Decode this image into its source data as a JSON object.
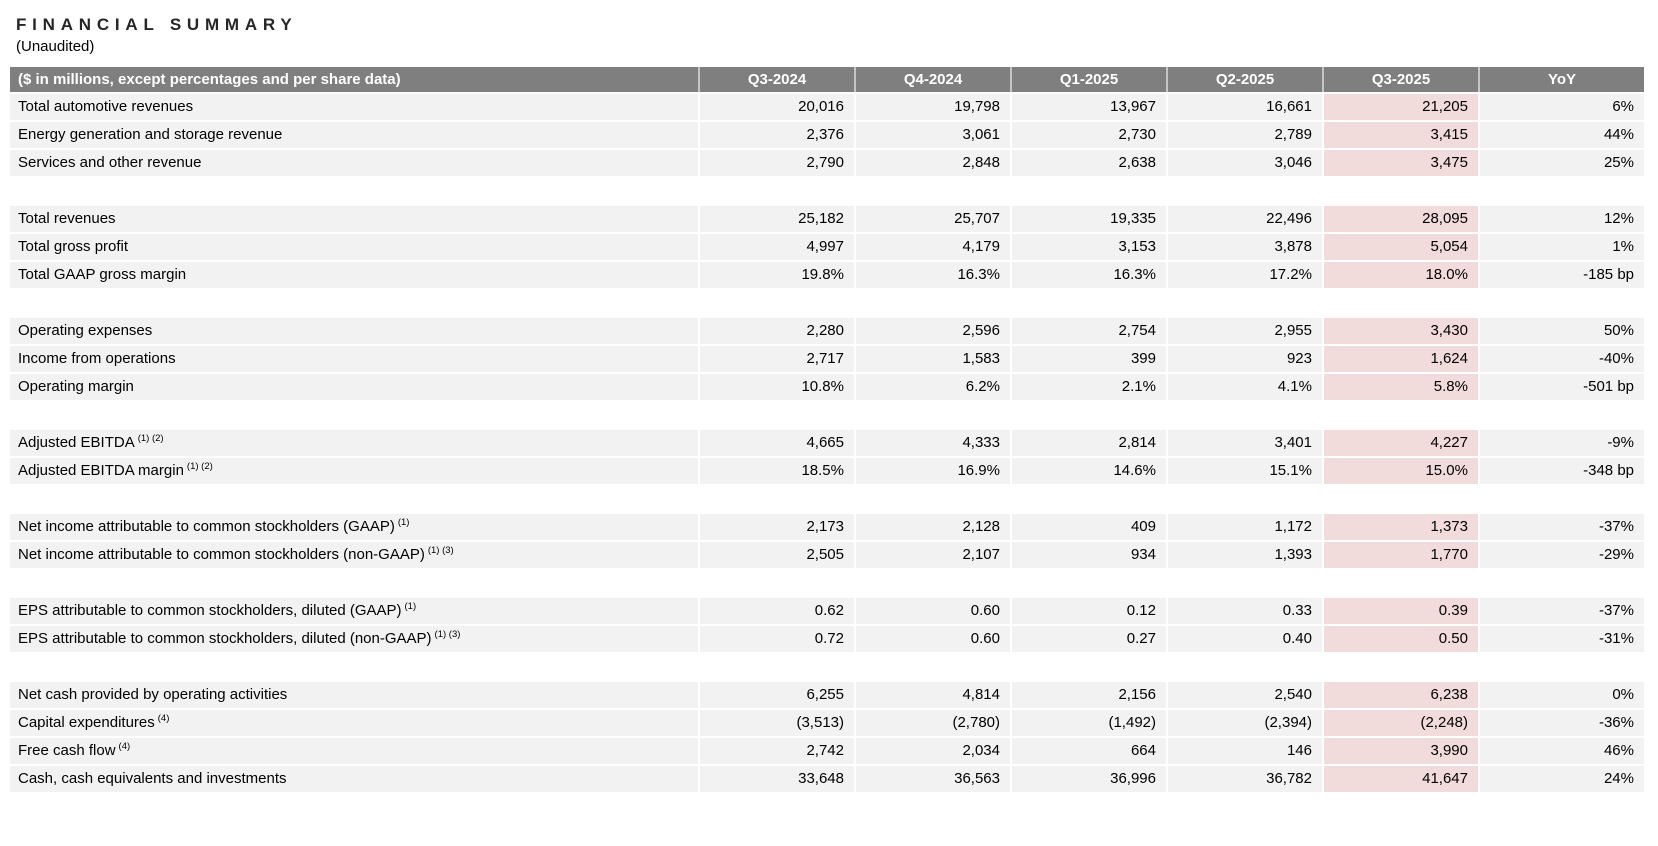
{
  "title": "FINANCIAL SUMMARY",
  "subtitle": "(Unaudited)",
  "table": {
    "header": {
      "label": "($ in millions, except percentages and per share data)",
      "columns": [
        "Q3-2024",
        "Q4-2024",
        "Q1-2025",
        "Q2-2025",
        "Q3-2025",
        "YoY"
      ]
    },
    "highlight_column": "Q3-2025",
    "colors": {
      "header_bg": "#7f7f7f",
      "header_text": "#ffffff",
      "row_bg": "#f2f2f2",
      "highlight_bg": "#f2dcdb"
    },
    "sections": [
      {
        "rows": [
          {
            "label": "Total automotive revenues",
            "sup": "",
            "values": [
              "20,016",
              "19,798",
              "13,967",
              "16,661",
              "21,205",
              "6%"
            ]
          },
          {
            "label": "Energy generation and storage revenue",
            "sup": "",
            "values": [
              "2,376",
              "3,061",
              "2,730",
              "2,789",
              "3,415",
              "44%"
            ]
          },
          {
            "label": "Services and other revenue",
            "sup": "",
            "values": [
              "2,790",
              "2,848",
              "2,638",
              "3,046",
              "3,475",
              "25%"
            ]
          }
        ]
      },
      {
        "rows": [
          {
            "label": "Total revenues",
            "sup": "",
            "values": [
              "25,182",
              "25,707",
              "19,335",
              "22,496",
              "28,095",
              "12%"
            ]
          },
          {
            "label": "Total gross profit",
            "sup": "",
            "values": [
              "4,997",
              "4,179",
              "3,153",
              "3,878",
              "5,054",
              "1%"
            ]
          },
          {
            "label": "Total GAAP gross margin",
            "sup": "",
            "values": [
              "19.8%",
              "16.3%",
              "16.3%",
              "17.2%",
              "18.0%",
              "-185 bp"
            ]
          }
        ]
      },
      {
        "rows": [
          {
            "label": "Operating expenses",
            "sup": "",
            "values": [
              "2,280",
              "2,596",
              "2,754",
              "2,955",
              "3,430",
              "50%"
            ]
          },
          {
            "label": "Income from operations",
            "sup": "",
            "values": [
              "2,717",
              "1,583",
              "399",
              "923",
              "1,624",
              "-40%"
            ]
          },
          {
            "label": "Operating margin",
            "sup": "",
            "values": [
              "10.8%",
              "6.2%",
              "2.1%",
              "4.1%",
              "5.8%",
              "-501 bp"
            ]
          }
        ]
      },
      {
        "rows": [
          {
            "label": "Adjusted EBITDA",
            "sup": "(1) (2)",
            "values": [
              "4,665",
              "4,333",
              "2,814",
              "3,401",
              "4,227",
              "-9%"
            ]
          },
          {
            "label": "Adjusted EBITDA margin",
            "sup": "(1) (2)",
            "values": [
              "18.5%",
              "16.9%",
              "14.6%",
              "15.1%",
              "15.0%",
              "-348 bp"
            ]
          }
        ]
      },
      {
        "rows": [
          {
            "label": "Net income attributable to common stockholders (GAAP)",
            "sup": "(1)",
            "values": [
              "2,173",
              "2,128",
              "409",
              "1,172",
              "1,373",
              "-37%"
            ]
          },
          {
            "label": "Net income attributable to common stockholders (non-GAAP)",
            "sup": "(1) (3)",
            "values": [
              "2,505",
              "2,107",
              "934",
              "1,393",
              "1,770",
              "-29%"
            ]
          }
        ]
      },
      {
        "rows": [
          {
            "label": "EPS attributable to common stockholders, diluted (GAAP)",
            "sup": "(1)",
            "values": [
              "0.62",
              "0.60",
              "0.12",
              "0.33",
              "0.39",
              "-37%"
            ]
          },
          {
            "label": "EPS attributable to common stockholders, diluted (non-GAAP)",
            "sup": "(1) (3)",
            "values": [
              "0.72",
              "0.60",
              "0.27",
              "0.40",
              "0.50",
              "-31%"
            ]
          }
        ]
      },
      {
        "rows": [
          {
            "label": "Net cash provided by operating activities",
            "sup": "",
            "values": [
              "6,255",
              "4,814",
              "2,156",
              "2,540",
              "6,238",
              "0%"
            ]
          },
          {
            "label": "Capital expenditures",
            "sup": "(4)",
            "values": [
              "(3,513)",
              "(2,780)",
              "(1,492)",
              "(2,394)",
              "(2,248)",
              "-36%"
            ]
          },
          {
            "label": "Free cash flow",
            "sup": "(4)",
            "values": [
              "2,742",
              "2,034",
              "664",
              "146",
              "3,990",
              "46%"
            ]
          },
          {
            "label": "Cash, cash equivalents and investments",
            "sup": "",
            "values": [
              "33,648",
              "36,563",
              "36,996",
              "36,782",
              "41,647",
              "24%"
            ]
          }
        ]
      }
    ]
  }
}
